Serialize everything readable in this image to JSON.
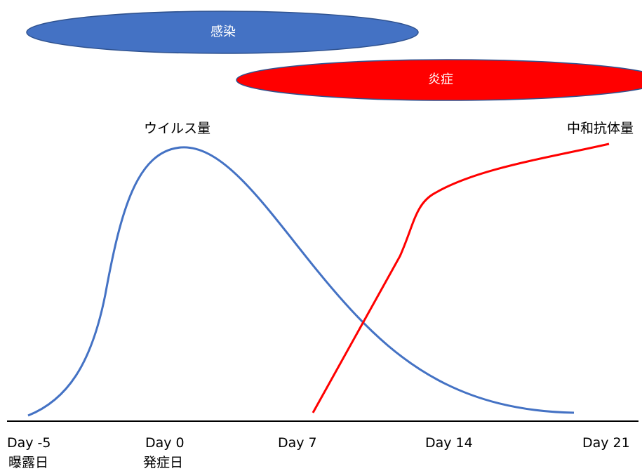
{
  "bars": {
    "infection": {
      "label": "感染",
      "color": "#4472C4"
    },
    "inflammation": {
      "label": "炎症",
      "color": "#FF0000"
    }
  },
  "curves": {
    "viral_load": {
      "label": "ウイルス量",
      "color": "#4472C4"
    },
    "antibody": {
      "label": "中和抗体量",
      "color": "#FF0000"
    }
  },
  "axis": {
    "ticks": [
      {
        "day": "Day -5",
        "sub": "曝露日"
      },
      {
        "day": "Day 0",
        "sub": "発症日"
      },
      {
        "day": "Day 7",
        "sub": ""
      },
      {
        "day": "Day 14",
        "sub": ""
      },
      {
        "day": "Day 21",
        "sub": ""
      }
    ]
  }
}
